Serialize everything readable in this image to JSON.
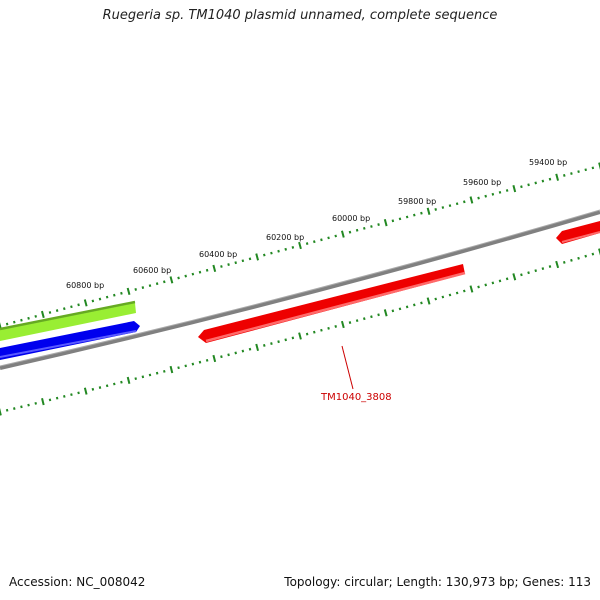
{
  "title": "Ruegeria sp. TM1040 plasmid unnamed, complete sequence",
  "accession": "Accession: NC_008042",
  "summary": "Topology: circular; Length: 130,973 bp; Genes: 113",
  "ruler": {
    "tick_labels": [
      "60800 bp",
      "60600 bp",
      "60400 bp",
      "60200 bp",
      "60000 bp",
      "59800 bp",
      "59600 bp",
      "59400 bp"
    ]
  },
  "genes": [
    {
      "label": "TM1040_3808",
      "color": "#ee0000"
    }
  ],
  "colors": {
    "backbone": "#808080",
    "tick": "#228822",
    "gene_red": "#ee0000",
    "gene_blue": "#0000ee",
    "gene_green": "#99ee33"
  }
}
